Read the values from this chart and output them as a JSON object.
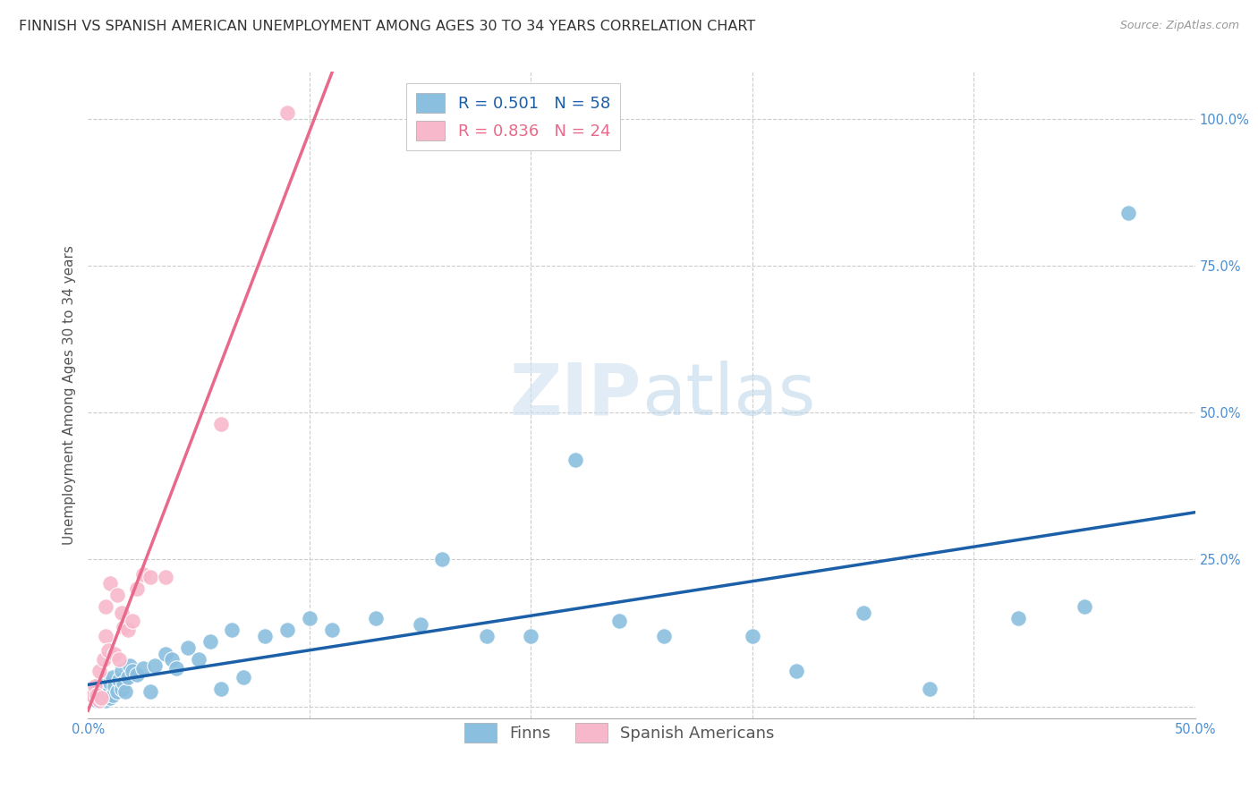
{
  "title": "FINNISH VS SPANISH AMERICAN UNEMPLOYMENT AMONG AGES 30 TO 34 YEARS CORRELATION CHART",
  "source": "Source: ZipAtlas.com",
  "ylabel": "Unemployment Among Ages 30 to 34 years",
  "watermark_zip": "ZIP",
  "watermark_atlas": "atlas",
  "xlim": [
    0.0,
    0.5
  ],
  "ylim": [
    -0.02,
    1.08
  ],
  "xticks": [
    0.0,
    0.1,
    0.2,
    0.3,
    0.4,
    0.5
  ],
  "yticks": [
    0.0,
    0.25,
    0.5,
    0.75,
    1.0
  ],
  "xtick_labels_left": "0.0%",
  "xtick_labels_right": "50.0%",
  "ytick_labels": [
    "",
    "25.0%",
    "50.0%",
    "75.0%",
    "100.0%"
  ],
  "finns_R": 0.501,
  "finns_N": 58,
  "spanish_R": 0.836,
  "spanish_N": 24,
  "finns_color": "#8bbfdf",
  "spanish_color": "#f7b8cb",
  "finns_line_color": "#1a5fa8",
  "spanish_line_color": "#e8698a",
  "finns_x": [
    0.003,
    0.004,
    0.004,
    0.005,
    0.005,
    0.006,
    0.006,
    0.007,
    0.007,
    0.008,
    0.008,
    0.009,
    0.01,
    0.01,
    0.011,
    0.011,
    0.012,
    0.013,
    0.014,
    0.015,
    0.015,
    0.016,
    0.017,
    0.018,
    0.019,
    0.02,
    0.022,
    0.025,
    0.028,
    0.03,
    0.035,
    0.038,
    0.04,
    0.045,
    0.05,
    0.055,
    0.06,
    0.065,
    0.07,
    0.08,
    0.09,
    0.1,
    0.11,
    0.13,
    0.15,
    0.16,
    0.18,
    0.2,
    0.22,
    0.24,
    0.26,
    0.3,
    0.32,
    0.35,
    0.38,
    0.42,
    0.45,
    0.47
  ],
  "finns_y": [
    0.025,
    0.01,
    0.03,
    0.015,
    0.035,
    0.02,
    0.04,
    0.015,
    0.035,
    0.01,
    0.045,
    0.025,
    0.015,
    0.04,
    0.02,
    0.05,
    0.035,
    0.025,
    0.045,
    0.03,
    0.06,
    0.04,
    0.025,
    0.05,
    0.07,
    0.06,
    0.055,
    0.065,
    0.025,
    0.07,
    0.09,
    0.08,
    0.065,
    0.1,
    0.08,
    0.11,
    0.03,
    0.13,
    0.05,
    0.12,
    0.13,
    0.15,
    0.13,
    0.15,
    0.14,
    0.25,
    0.12,
    0.12,
    0.42,
    0.145,
    0.12,
    0.12,
    0.06,
    0.16,
    0.03,
    0.15,
    0.17,
    0.84
  ],
  "spanish_x": [
    0.002,
    0.003,
    0.004,
    0.005,
    0.005,
    0.006,
    0.007,
    0.008,
    0.008,
    0.009,
    0.01,
    0.012,
    0.013,
    0.014,
    0.015,
    0.016,
    0.018,
    0.02,
    0.022,
    0.025,
    0.028,
    0.035,
    0.06,
    0.09
  ],
  "spanish_y": [
    0.02,
    0.035,
    0.02,
    0.06,
    0.01,
    0.015,
    0.08,
    0.12,
    0.17,
    0.095,
    0.21,
    0.09,
    0.19,
    0.08,
    0.16,
    0.135,
    0.13,
    0.145,
    0.2,
    0.225,
    0.22,
    0.22,
    0.48,
    1.01
  ],
  "grid_color": "#cccccc",
  "bg_color": "#ffffff",
  "title_fontsize": 11.5,
  "axis_label_fontsize": 11,
  "tick_fontsize": 10.5,
  "legend_fontsize": 13
}
